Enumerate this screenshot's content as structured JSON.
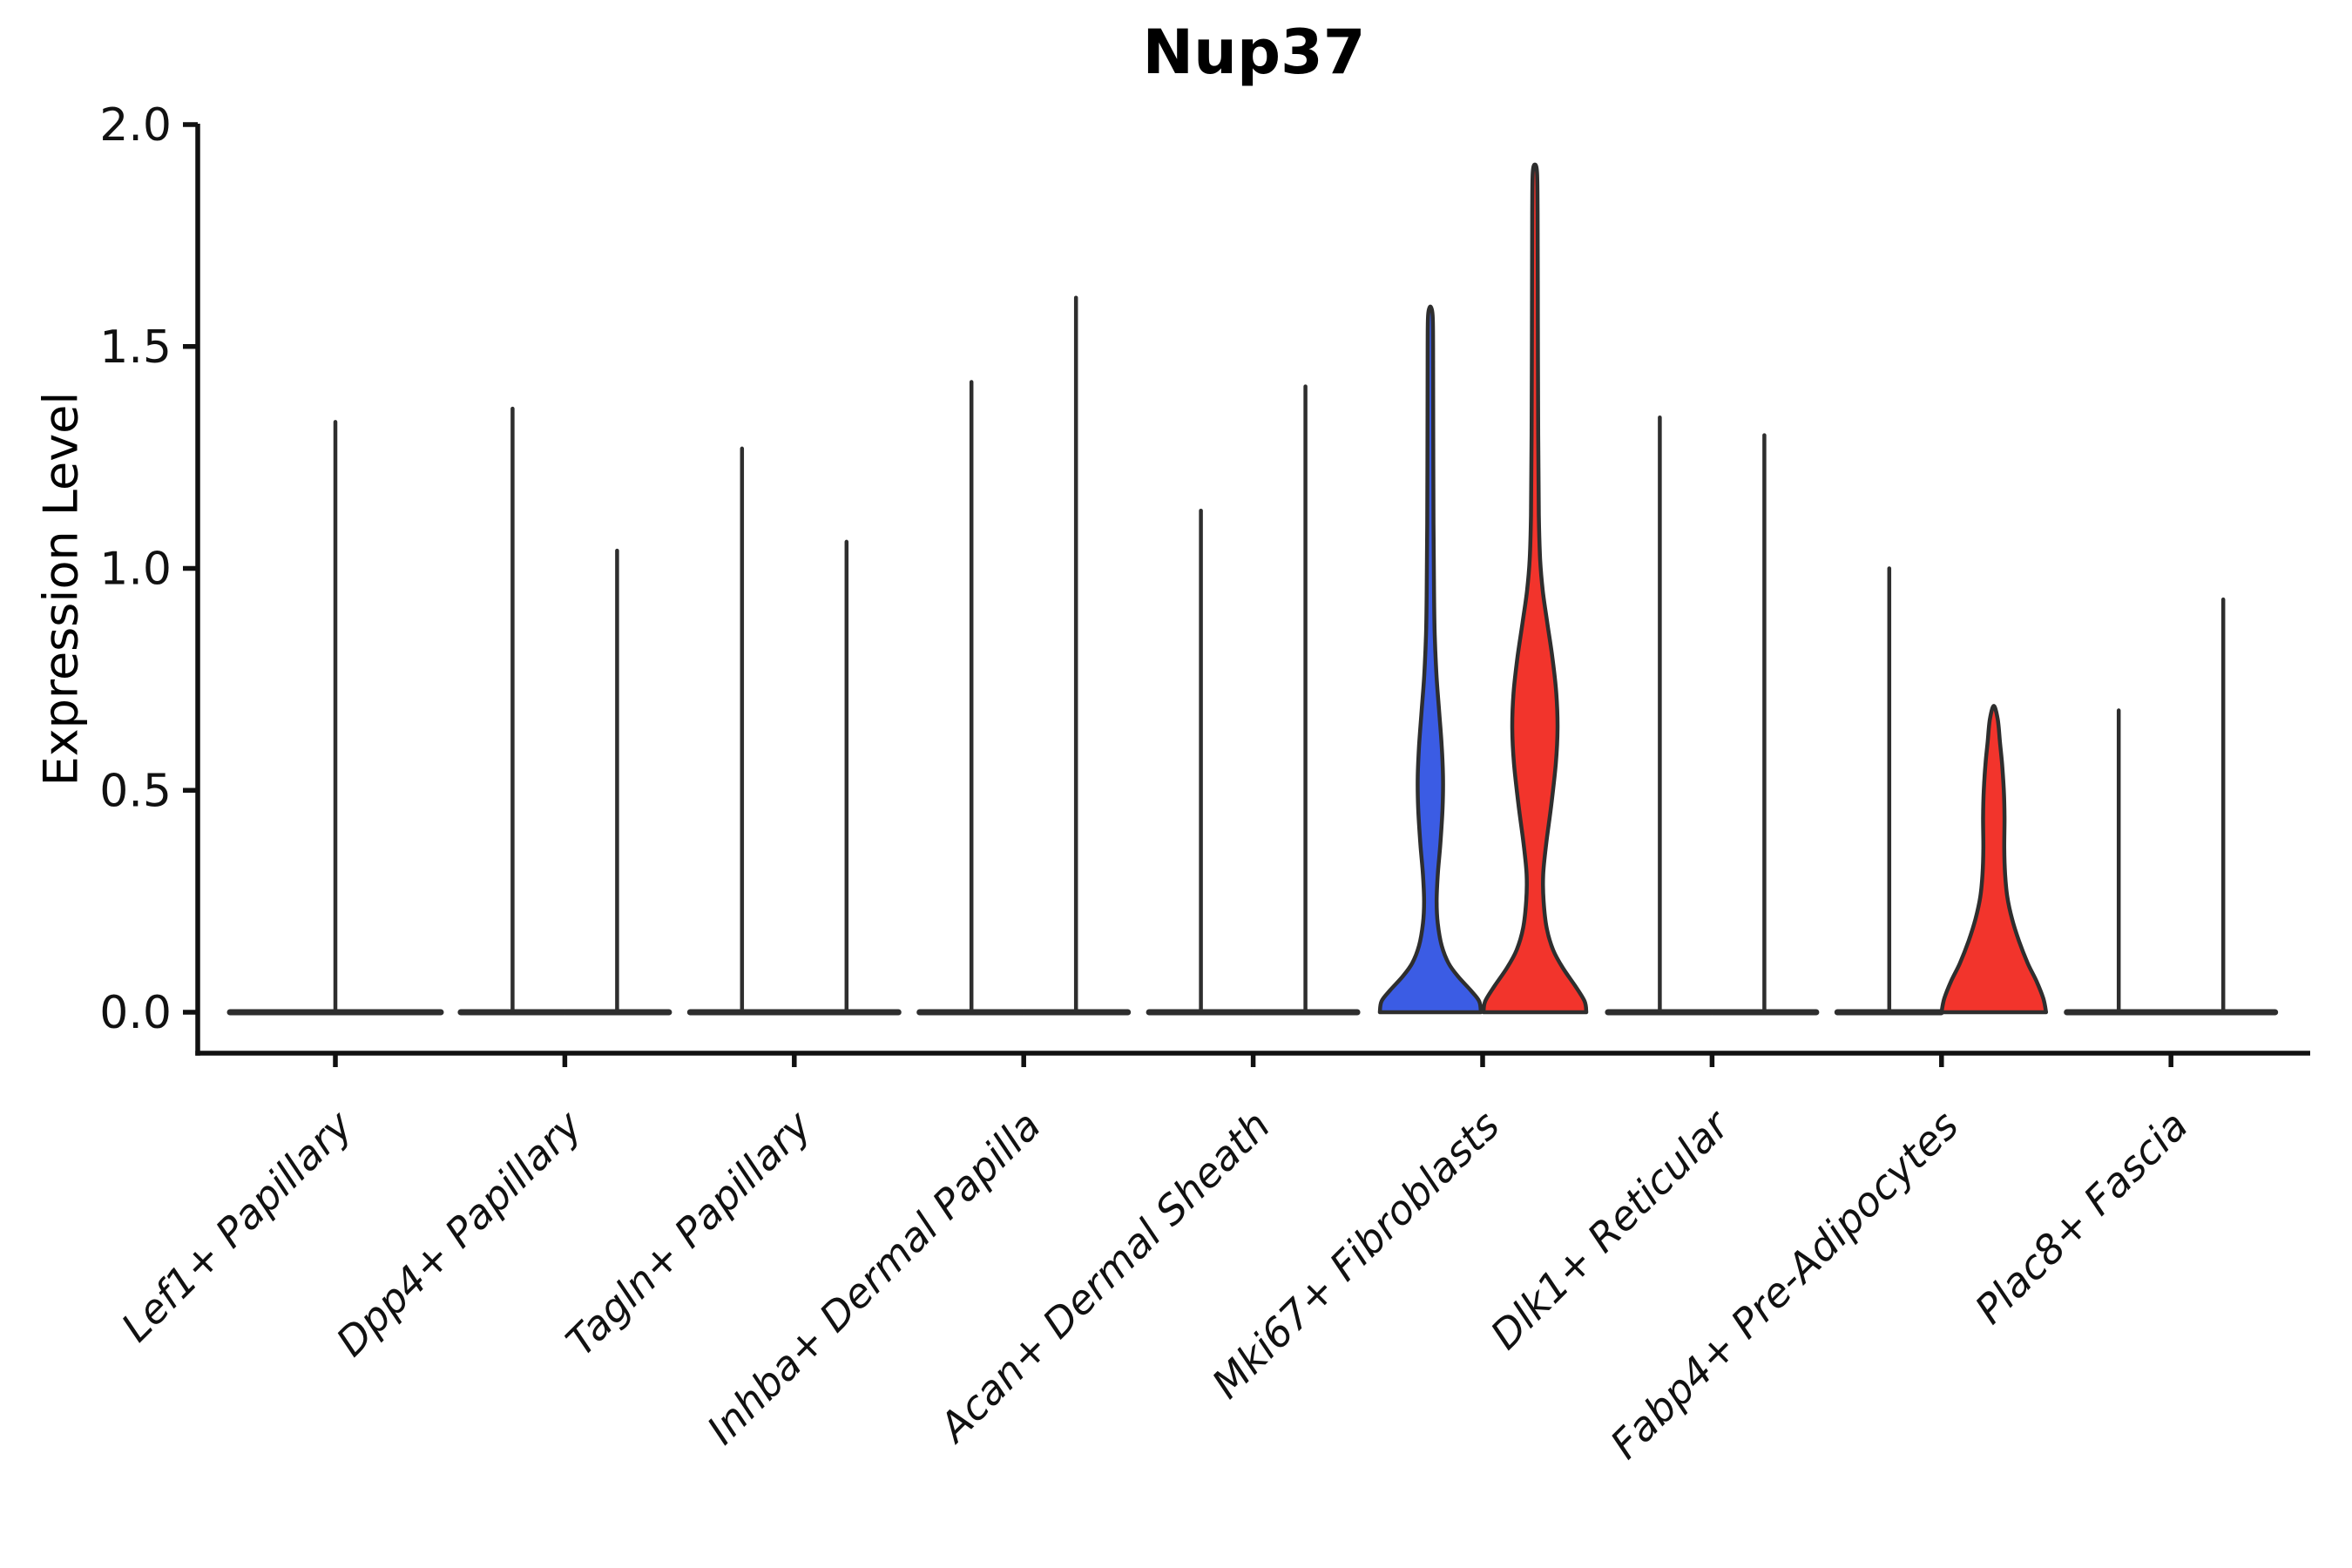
{
  "chart_data": {
    "type": "violin",
    "title": "Nup37",
    "ylabel": "Expression Level",
    "xlabel": "",
    "ylim": [
      -0.09,
      2.0
    ],
    "grid": false,
    "legend": "none",
    "x_tick_rotation_deg": 45,
    "x_labels_italic": true,
    "yticks": [
      {
        "value": 0.0,
        "label": "0.0"
      },
      {
        "value": 0.5,
        "label": "0.5"
      },
      {
        "value": 1.0,
        "label": "1.0"
      },
      {
        "value": 1.5,
        "label": "1.5"
      },
      {
        "value": 2.0,
        "label": "2.0"
      }
    ],
    "categories": [
      "Lef1+ Papillary",
      "Dpp4+ Papillary",
      "Tagln+ Papillary",
      "Inhba+ Dermal Papilla",
      "Acan+ Dermal Sheath",
      "Mki67+ Fibroblasts",
      "Dlk1+ Reticular",
      "Fabp4+ Pre-Adipocytes",
      "Plac8+ Fascia"
    ],
    "colors": {
      "violin_outline": "#2E2E2E",
      "axis": "#111111",
      "fill_blue": "#3B5CE4",
      "fill_red": "#F2342C"
    },
    "violins": [
      {
        "category_index": 0,
        "slot": "center",
        "max_expression": 1.33,
        "style": "spike"
      },
      {
        "category_index": 1,
        "slot": "left",
        "max_expression": 1.36,
        "style": "spike"
      },
      {
        "category_index": 1,
        "slot": "right",
        "max_expression": 1.04,
        "style": "spike"
      },
      {
        "category_index": 2,
        "slot": "left",
        "max_expression": 1.27,
        "style": "spike"
      },
      {
        "category_index": 2,
        "slot": "right",
        "max_expression": 1.06,
        "style": "spike"
      },
      {
        "category_index": 3,
        "slot": "left",
        "max_expression": 1.42,
        "style": "spike"
      },
      {
        "category_index": 3,
        "slot": "right",
        "max_expression": 1.61,
        "style": "spike"
      },
      {
        "category_index": 4,
        "slot": "left",
        "max_expression": 1.13,
        "style": "spike"
      },
      {
        "category_index": 4,
        "slot": "right",
        "max_expression": 1.41,
        "style": "spike"
      },
      {
        "category_index": 5,
        "slot": "left",
        "max_expression": 1.59,
        "style": "filled",
        "fill": "#3B5CE4",
        "profile": "mki67_blue"
      },
      {
        "category_index": 5,
        "slot": "right",
        "max_expression": 1.91,
        "style": "filled",
        "fill": "#F2342C",
        "profile": "mki67_red"
      },
      {
        "category_index": 6,
        "slot": "left",
        "max_expression": 1.34,
        "style": "spike"
      },
      {
        "category_index": 6,
        "slot": "right",
        "max_expression": 1.3,
        "style": "spike"
      },
      {
        "category_index": 7,
        "slot": "left",
        "max_expression": 1.0,
        "style": "spike"
      },
      {
        "category_index": 7,
        "slot": "right",
        "max_expression": 0.69,
        "style": "filled",
        "fill": "#F2342C",
        "profile": "fabp4_red"
      },
      {
        "category_index": 8,
        "slot": "left",
        "max_expression": 0.68,
        "style": "spike"
      },
      {
        "category_index": 8,
        "slot": "right",
        "max_expression": 0.93,
        "style": "spike"
      }
    ],
    "profiles": {
      "mki67_blue": [
        [
          0,
          58
        ],
        [
          0.025,
          56
        ],
        [
          0.05,
          46
        ],
        [
          0.08,
          32
        ],
        [
          0.11,
          21
        ],
        [
          0.15,
          13
        ],
        [
          0.2,
          8.5
        ],
        [
          0.25,
          7.2
        ],
        [
          0.31,
          8.5
        ],
        [
          0.38,
          11.5
        ],
        [
          0.46,
          14
        ],
        [
          0.53,
          14.5
        ],
        [
          0.6,
          13
        ],
        [
          0.68,
          10
        ],
        [
          0.76,
          7
        ],
        [
          0.85,
          5
        ],
        [
          0.95,
          4.2
        ],
        [
          1.1,
          3.6
        ],
        [
          1.3,
          3.3
        ],
        [
          1.5,
          3.1
        ],
        [
          1.57,
          2.6
        ],
        [
          1.59,
          0
        ]
      ],
      "mki67_red": [
        [
          0,
          59
        ],
        [
          0.025,
          57
        ],
        [
          0.06,
          46
        ],
        [
          0.1,
          32
        ],
        [
          0.14,
          21
        ],
        [
          0.19,
          13.5
        ],
        [
          0.25,
          10
        ],
        [
          0.31,
          9.5
        ],
        [
          0.38,
          13
        ],
        [
          0.47,
          19
        ],
        [
          0.56,
          24
        ],
        [
          0.64,
          26
        ],
        [
          0.72,
          24.5
        ],
        [
          0.8,
          20
        ],
        [
          0.88,
          14
        ],
        [
          0.95,
          9
        ],
        [
          1.02,
          6
        ],
        [
          1.12,
          4.5
        ],
        [
          1.3,
          3.8
        ],
        [
          1.55,
          3.4
        ],
        [
          1.8,
          3.1
        ],
        [
          1.89,
          2.5
        ],
        [
          1.91,
          0
        ]
      ],
      "fabp4_red": [
        [
          0,
          60
        ],
        [
          0.03,
          57
        ],
        [
          0.07,
          49
        ],
        [
          0.11,
          39
        ],
        [
          0.16,
          29
        ],
        [
          0.21,
          21
        ],
        [
          0.26,
          15.5
        ],
        [
          0.31,
          13
        ],
        [
          0.37,
          12
        ],
        [
          0.44,
          12.3
        ],
        [
          0.5,
          11.5
        ],
        [
          0.56,
          9.5
        ],
        [
          0.61,
          7
        ],
        [
          0.66,
          4.5
        ],
        [
          0.69,
          0
        ]
      ]
    }
  }
}
